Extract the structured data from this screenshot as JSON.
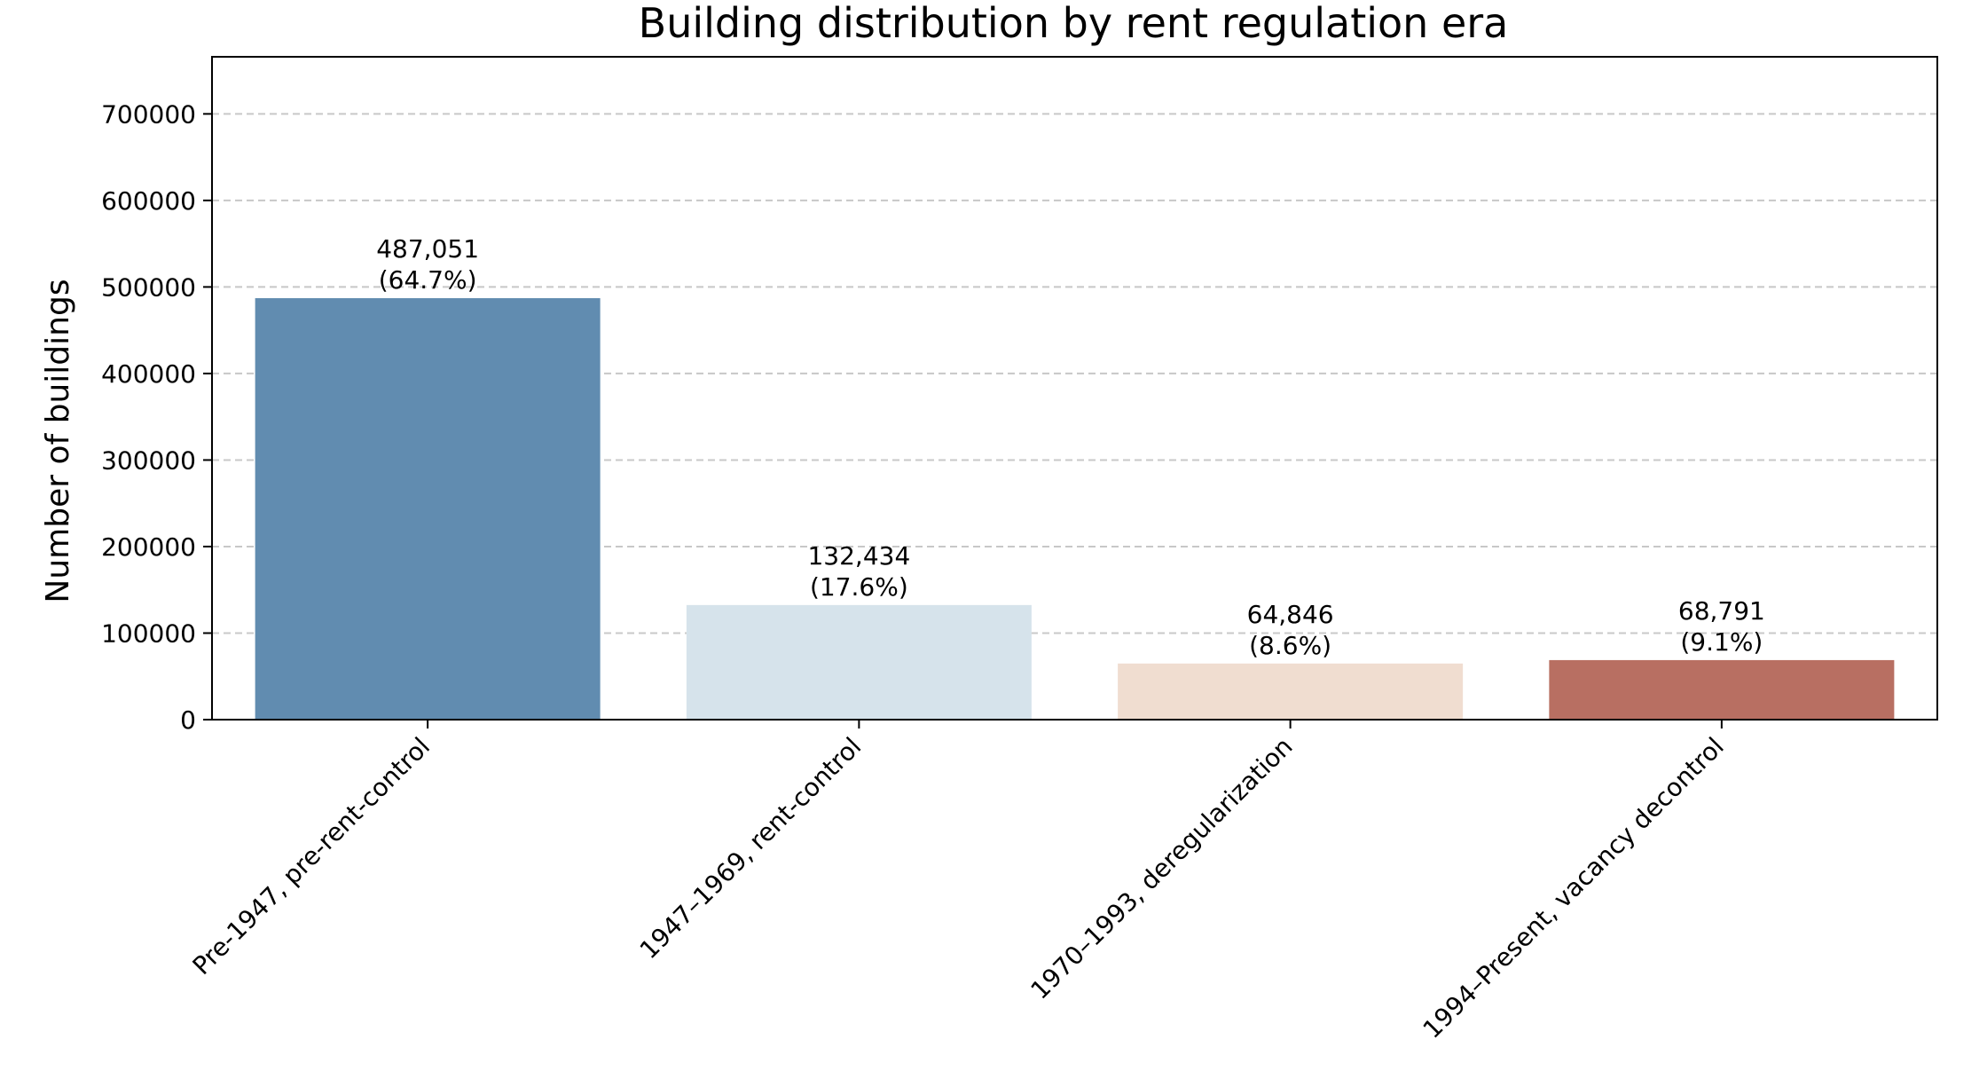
{
  "chart_data": {
    "type": "bar",
    "title": "Building distribution by rent regulation era",
    "xlabel": "",
    "ylabel": "Number of buildings",
    "categories": [
      "Pre-1947, pre-rent-control",
      "1947–1969, rent-control",
      "1970–1993, deregularization",
      "1994–Present, vacancy decontrol"
    ],
    "values": [
      487051,
      132434,
      64846,
      68791
    ],
    "value_labels": [
      "487,051",
      "132,434",
      "64,846",
      "68,791"
    ],
    "percent_labels": [
      "(64.7%)",
      "(17.6%)",
      "(8.6%)",
      "(9.1%)"
    ],
    "colors": [
      "#618cb0",
      "#d6e3eb",
      "#f0ddd0",
      "#b86f62"
    ],
    "ylim": [
      0,
      766000
    ],
    "yticks": [
      0,
      100000,
      200000,
      300000,
      400000,
      500000,
      600000,
      700000
    ],
    "ytick_labels": [
      "0",
      "100000",
      "200000",
      "300000",
      "400000",
      "500000",
      "600000",
      "700000"
    ],
    "grid": true,
    "legend": "none"
  }
}
